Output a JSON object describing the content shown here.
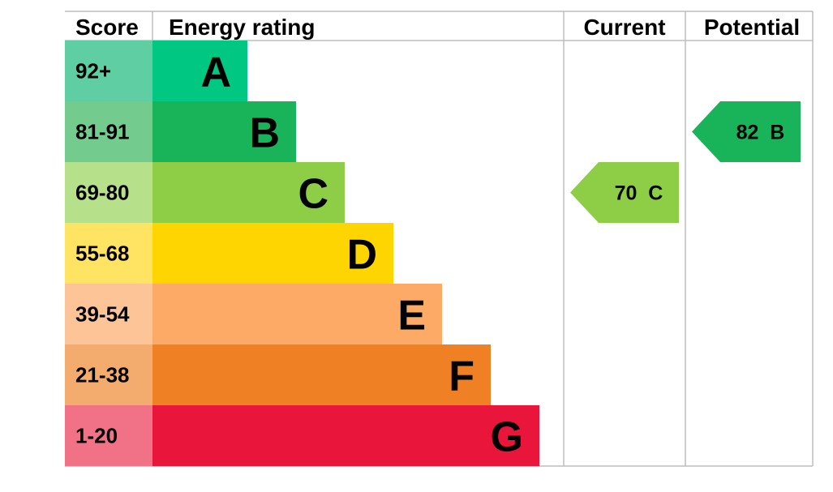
{
  "headers": {
    "score": "Score",
    "energy_rating": "Energy rating",
    "current": "Current",
    "potential": "Potential"
  },
  "chart_data": {
    "type": "bar",
    "title": "",
    "bands": [
      {
        "letter": "A",
        "range": "92+",
        "color": "#00c781",
        "score_bg": "#5fcfa3"
      },
      {
        "letter": "B",
        "range": "81-91",
        "color": "#19b459",
        "score_bg": "#74cb8e"
      },
      {
        "letter": "C",
        "range": "69-80",
        "color": "#8dce46",
        "score_bg": "#b6e08a"
      },
      {
        "letter": "D",
        "range": "55-68",
        "color": "#ffd500",
        "score_bg": "#ffe464"
      },
      {
        "letter": "E",
        "range": "39-54",
        "color": "#fcaa65",
        "score_bg": "#fdc597"
      },
      {
        "letter": "F",
        "range": "21-38",
        "color": "#ef8023",
        "score_bg": "#f4ac6e"
      },
      {
        "letter": "G",
        "range": "1-20",
        "color": "#e9153b",
        "score_bg": "#f17287"
      }
    ],
    "current": {
      "value": 70,
      "band": "C",
      "label": "70  C"
    },
    "potential": {
      "value": 82,
      "band": "B",
      "label": "82  B"
    }
  }
}
